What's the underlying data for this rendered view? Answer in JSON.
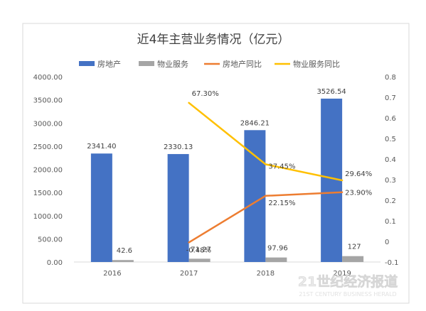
{
  "chart_data": {
    "type": "bar",
    "title": "近4年主营业务情况（亿元）",
    "categories": [
      "2016",
      "2017",
      "2018",
      "2019"
    ],
    "series": [
      {
        "name": "房地产",
        "kind": "bar",
        "axis": "left",
        "color": "#4472c4",
        "values": [
          2341.4,
          2330.13,
          2846.21,
          3526.54
        ],
        "labels": [
          "2341.40",
          "2330.13",
          "2846.21",
          "3526.54"
        ]
      },
      {
        "name": "物业服务",
        "kind": "bar",
        "axis": "left",
        "color": "#a5a5a5",
        "values": [
          42.6,
          71.27,
          97.96,
          127
        ],
        "labels": [
          "42.6",
          "71.27",
          "97.96",
          "127"
        ]
      },
      {
        "name": "房地产同比",
        "kind": "line",
        "axis": "right",
        "color": "#ed7d31",
        "values": [
          null,
          -0.0048,
          0.2215,
          0.239
        ],
        "labels": [
          null,
          "-0.48%",
          "22.15%",
          "23.90%"
        ]
      },
      {
        "name": "物业服务同比",
        "kind": "line",
        "axis": "right",
        "color": "#ffc000",
        "values": [
          null,
          0.673,
          0.3745,
          0.2964
        ],
        "labels": [
          null,
          "67.30%",
          "37.45%",
          "29.64%"
        ]
      }
    ],
    "y_left": {
      "min": 0,
      "max": 4000,
      "step": 500,
      "ticks": [
        "0.00",
        "500.00",
        "1000.00",
        "1500.00",
        "2000.00",
        "2500.00",
        "3000.00",
        "3500.00",
        "4000.00"
      ]
    },
    "y_right": {
      "min": -0.1,
      "max": 0.8,
      "step": 0.1,
      "ticks": [
        "-0.1",
        "0",
        "0.1",
        "0.2",
        "0.3",
        "0.4",
        "0.5",
        "0.6",
        "0.7",
        "0.8"
      ]
    },
    "grid": false,
    "legend_position": "top"
  },
  "watermark": {
    "line1": "21世纪经济报道",
    "line2": "21ST CENTURY BUSINESS HERALD"
  }
}
